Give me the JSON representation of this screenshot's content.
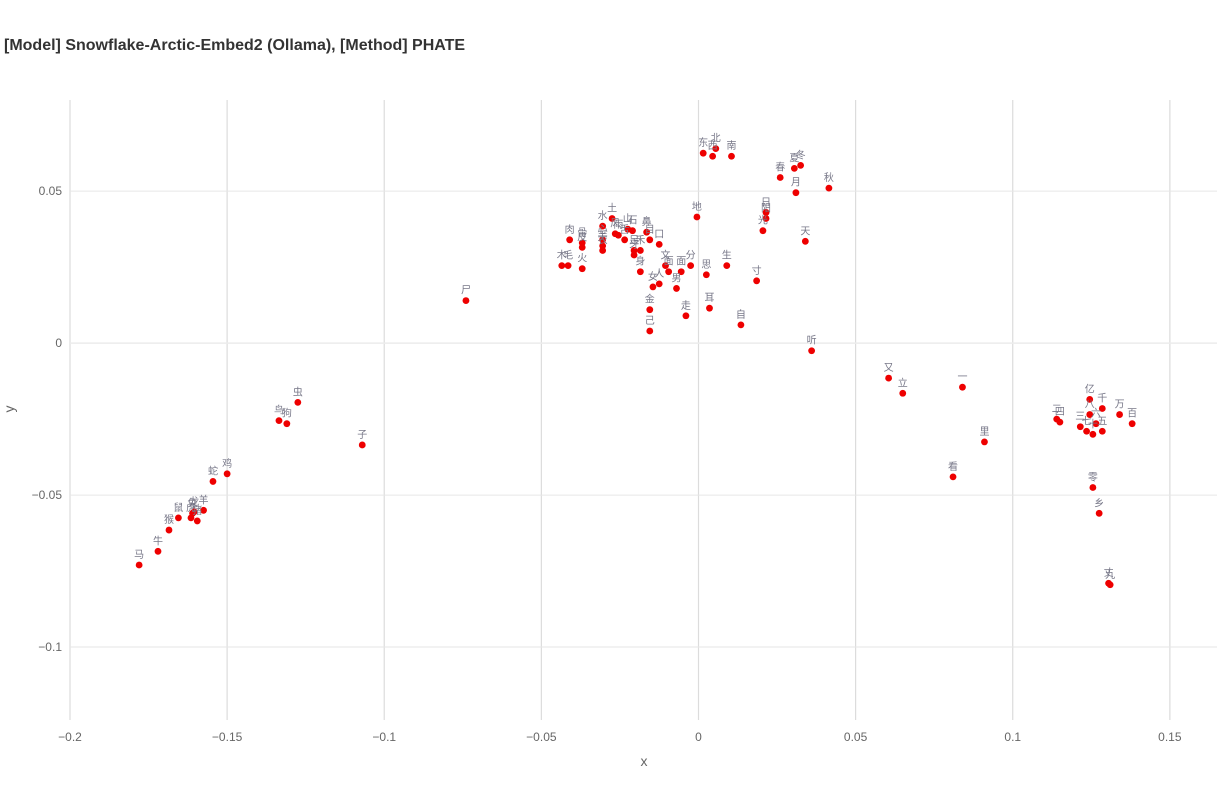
{
  "chart_data": {
    "type": "scatter",
    "title": "[Model] Snowflake-Arctic-Embed2 (Ollama), [Method] PHATE",
    "xlabel": "x",
    "ylabel": "y",
    "xlim": [
      -0.2,
      0.165
    ],
    "ylim": [
      -0.124,
      0.08
    ],
    "xticks": [
      -0.2,
      -0.15,
      -0.1,
      -0.05,
      0,
      0.05,
      0.1,
      0.15
    ],
    "xtick_labels": [
      "−0.2",
      "−0.15",
      "−0.1",
      "−0.05",
      "0",
      "0.05",
      "0.1",
      "0.15"
    ],
    "yticks": [
      0.05,
      0,
      -0.05,
      -0.1
    ],
    "ytick_labels": [
      "0.05",
      "0",
      "−0.05",
      "−0.1"
    ],
    "grid": true,
    "marker_color": "#ee0000",
    "label_color": "#777788",
    "points": [
      {
        "label": "马",
        "x": -0.178,
        "y": -0.073
      },
      {
        "label": "牛",
        "x": -0.172,
        "y": -0.0685
      },
      {
        "label": "猴",
        "x": -0.1685,
        "y": -0.0615
      },
      {
        "label": "鼠",
        "x": -0.1655,
        "y": -0.0575
      },
      {
        "label": "虎",
        "x": -0.1615,
        "y": -0.0575
      },
      {
        "label": "兔",
        "x": -0.161,
        "y": -0.056
      },
      {
        "label": "龙",
        "x": -0.1605,
        "y": -0.0555
      },
      {
        "label": "猪",
        "x": -0.1595,
        "y": -0.0585
      },
      {
        "label": "羊",
        "x": -0.1575,
        "y": -0.055
      },
      {
        "label": "蛇",
        "x": -0.1545,
        "y": -0.0455
      },
      {
        "label": "鸡",
        "x": -0.15,
        "y": -0.043
      },
      {
        "label": "鸟",
        "x": -0.1335,
        "y": -0.0255
      },
      {
        "label": "狗",
        "x": -0.131,
        "y": -0.0265
      },
      {
        "label": "虫",
        "x": -0.1275,
        "y": -0.0195
      },
      {
        "label": "子",
        "x": -0.107,
        "y": -0.0335
      },
      {
        "label": "尸",
        "x": -0.074,
        "y": 0.014
      },
      {
        "label": "木",
        "x": -0.0435,
        "y": 0.0255
      },
      {
        "label": "毛",
        "x": -0.0415,
        "y": 0.0255
      },
      {
        "label": "肉",
        "x": -0.041,
        "y": 0.034
      },
      {
        "label": "骨",
        "x": -0.037,
        "y": 0.033
      },
      {
        "label": "皮",
        "x": -0.037,
        "y": 0.0315
      },
      {
        "label": "火",
        "x": -0.037,
        "y": 0.0245
      },
      {
        "label": "水",
        "x": -0.0305,
        "y": 0.0385
      },
      {
        "label": "心",
        "x": -0.0305,
        "y": 0.034
      },
      {
        "label": "手",
        "x": -0.0305,
        "y": 0.032
      },
      {
        "label": "衣",
        "x": -0.0305,
        "y": 0.0305
      },
      {
        "label": "土",
        "x": -0.0275,
        "y": 0.041
      },
      {
        "label": "风",
        "x": -0.0265,
        "y": 0.036
      },
      {
        "label": "雨",
        "x": -0.0255,
        "y": 0.0355
      },
      {
        "label": "山",
        "x": -0.0225,
        "y": 0.0375
      },
      {
        "label": "石",
        "x": -0.021,
        "y": 0.037
      },
      {
        "label": "舌",
        "x": -0.0235,
        "y": 0.034
      },
      {
        "label": "足",
        "x": -0.0205,
        "y": 0.0305
      },
      {
        "label": "牙",
        "x": -0.0205,
        "y": 0.029
      },
      {
        "label": "禾",
        "x": -0.0185,
        "y": 0.0305
      },
      {
        "label": "身",
        "x": -0.0185,
        "y": 0.0235
      },
      {
        "label": "鼻",
        "x": -0.0165,
        "y": 0.0365
      },
      {
        "label": "目",
        "x": -0.0155,
        "y": 0.034
      },
      {
        "label": "口",
        "x": -0.0125,
        "y": 0.0325
      },
      {
        "label": "金",
        "x": -0.0155,
        "y": 0.011
      },
      {
        "label": "己",
        "x": -0.0155,
        "y": 0.004
      },
      {
        "label": "女",
        "x": -0.0145,
        "y": 0.0185
      },
      {
        "label": "人",
        "x": -0.0125,
        "y": 0.0195
      },
      {
        "label": "文",
        "x": -0.0105,
        "y": 0.0255
      },
      {
        "label": "面",
        "x": -0.0095,
        "y": 0.0235
      },
      {
        "label": "男",
        "x": -0.007,
        "y": 0.018
      },
      {
        "label": "面",
        "x": -0.0055,
        "y": 0.0235
      },
      {
        "label": "分",
        "x": -0.0025,
        "y": 0.0255
      },
      {
        "label": "走",
        "x": -0.004,
        "y": 0.009
      },
      {
        "label": "地",
        "x": -0.0005,
        "y": 0.0415
      },
      {
        "label": "东",
        "x": 0.0015,
        "y": 0.0625
      },
      {
        "label": "西",
        "x": 0.0045,
        "y": 0.0615
      },
      {
        "label": "北",
        "x": 0.0055,
        "y": 0.064
      },
      {
        "label": "南",
        "x": 0.0105,
        "y": 0.0615
      },
      {
        "label": "思",
        "x": 0.0025,
        "y": 0.0225
      },
      {
        "label": "耳",
        "x": 0.0035,
        "y": 0.0115
      },
      {
        "label": "生",
        "x": 0.009,
        "y": 0.0255
      },
      {
        "label": "自",
        "x": 0.0135,
        "y": 0.006
      },
      {
        "label": "寸",
        "x": 0.0185,
        "y": 0.0205
      },
      {
        "label": "光",
        "x": 0.0205,
        "y": 0.037
      },
      {
        "label": "日",
        "x": 0.0215,
        "y": 0.043
      },
      {
        "label": "阳",
        "x": 0.0215,
        "y": 0.041
      },
      {
        "label": "春",
        "x": 0.026,
        "y": 0.0545
      },
      {
        "label": "夏",
        "x": 0.0305,
        "y": 0.0575
      },
      {
        "label": "冬",
        "x": 0.0325,
        "y": 0.0585
      },
      {
        "label": "月",
        "x": 0.031,
        "y": 0.0495
      },
      {
        "label": "天",
        "x": 0.034,
        "y": 0.0335
      },
      {
        "label": "秋",
        "x": 0.0415,
        "y": 0.051
      },
      {
        "label": "听",
        "x": 0.036,
        "y": -0.0025
      },
      {
        "label": "又",
        "x": 0.0605,
        "y": -0.0115
      },
      {
        "label": "立",
        "x": 0.065,
        "y": -0.0165
      },
      {
        "label": "一",
        "x": 0.084,
        "y": -0.0145
      },
      {
        "label": "看",
        "x": 0.081,
        "y": -0.044
      },
      {
        "label": "里",
        "x": 0.091,
        "y": -0.0325
      },
      {
        "label": "二",
        "x": 0.114,
        "y": -0.025
      },
      {
        "label": "四",
        "x": 0.115,
        "y": -0.026
      },
      {
        "label": "三",
        "x": 0.1215,
        "y": -0.0275
      },
      {
        "label": "亿",
        "x": 0.1245,
        "y": -0.0185
      },
      {
        "label": "八",
        "x": 0.1245,
        "y": -0.0235
      },
      {
        "label": "七",
        "x": 0.1235,
        "y": -0.029
      },
      {
        "label": "十",
        "x": 0.1255,
        "y": -0.03
      },
      {
        "label": "六",
        "x": 0.1265,
        "y": -0.0265
      },
      {
        "label": "五",
        "x": 0.1285,
        "y": -0.029
      },
      {
        "label": "千",
        "x": 0.1285,
        "y": -0.0215
      },
      {
        "label": "万",
        "x": 0.134,
        "y": -0.0235
      },
      {
        "label": "百",
        "x": 0.138,
        "y": -0.0265
      },
      {
        "label": "零",
        "x": 0.1255,
        "y": -0.0475
      },
      {
        "label": "乡",
        "x": 0.1275,
        "y": -0.056
      },
      {
        "label": "丈",
        "x": 0.1305,
        "y": -0.079
      },
      {
        "label": "九",
        "x": 0.131,
        "y": -0.0795
      }
    ]
  }
}
